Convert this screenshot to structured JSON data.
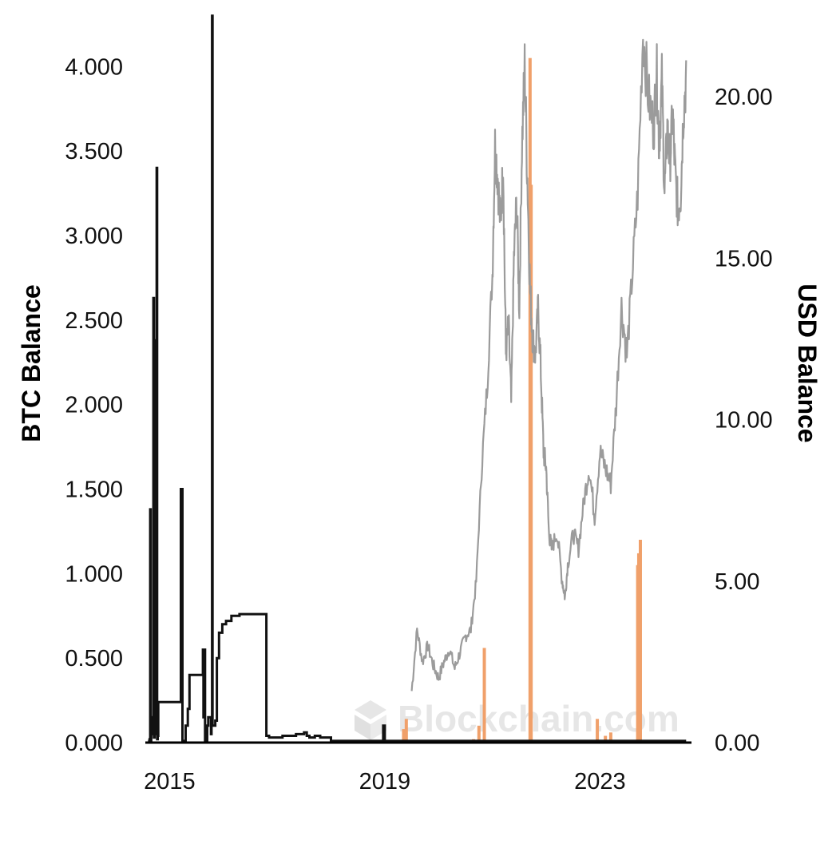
{
  "colors": {
    "btc_line": "#111111",
    "usd_line": "#9b9b9b",
    "volume_bars": "#f0a06a",
    "watermark": "#e6e6e6",
    "background": "#ffffff"
  },
  "watermark": {
    "text": "Blockchain.com",
    "icon": "blockchain-logo-icon"
  },
  "chart_data": {
    "type": "line",
    "grid": false,
    "legend": "none",
    "ylabel_left": "BTC Balance",
    "ylabel_right": "USD Balance",
    "x_ticks": [
      "2015",
      "2019",
      "2023"
    ],
    "x_tick_years": [
      2015,
      2019,
      2023
    ],
    "xlim": [
      2014.55,
      2024.7
    ],
    "y_left_ticks": [
      "0.000",
      "0.500",
      "1.000",
      "1.500",
      "2.000",
      "2.500",
      "3.000",
      "3.500",
      "4.000"
    ],
    "ylim_left": [
      0,
      4.28
    ],
    "y_right_ticks": [
      "0.00",
      "5.00",
      "10.00",
      "15.00",
      "20.00"
    ],
    "ylim_right": [
      0,
      22.4
    ],
    "series": [
      {
        "name": "BTC Balance",
        "axis": "left",
        "x": [
          2014.6,
          2014.63,
          2014.64,
          2014.65,
          2014.66,
          2014.68,
          2014.7,
          2014.71,
          2014.72,
          2014.73,
          2014.74,
          2014.76,
          2014.77,
          2014.78,
          2014.79,
          2014.8,
          2014.81,
          2014.82,
          2014.83,
          2014.84,
          2014.86,
          2014.87,
          2014.88,
          2014.9,
          2014.92,
          2015.05,
          2015.2,
          2015.21,
          2015.22,
          2015.23,
          2015.24,
          2015.25,
          2015.26,
          2015.27,
          2015.28,
          2015.3,
          2015.34,
          2015.37,
          2015.4,
          2015.42,
          2015.43,
          2015.6,
          2015.62,
          2015.63,
          2015.65,
          2015.66,
          2015.68,
          2015.7,
          2015.72,
          2015.75,
          2015.77,
          2015.78,
          2015.79,
          2015.8,
          2015.81,
          2015.82,
          2015.85,
          2015.88,
          2015.92,
          2015.98,
          2016.05,
          2016.15,
          2016.3,
          2016.34,
          2016.35,
          2016.5,
          2016.6,
          2016.8,
          2016.85,
          2017.0,
          2017.1,
          2017.2,
          2017.35,
          2017.5,
          2017.55,
          2017.6,
          2017.7,
          2017.8,
          2018.0,
          2018.5,
          2018.9,
          2018.95,
          2018.96,
          2018.97,
          2019.0,
          2020.0,
          2021.0,
          2022.0,
          2023.0,
          2024.6
        ],
        "y": [
          0.01,
          0.02,
          1.38,
          0.01,
          0.15,
          0.05,
          2.63,
          0.03,
          0.2,
          2.38,
          0.05,
          3.4,
          0.02,
          0.04,
          0.24,
          0.24,
          0.24,
          0.24,
          0.24,
          0.24,
          0.24,
          0.24,
          0.24,
          0.24,
          0.24,
          0.24,
          0.24,
          1.5,
          1.5,
          1.5,
          0.01,
          0.01,
          0.01,
          0.01,
          0.01,
          0.1,
          0.2,
          0.4,
          0.4,
          0.4,
          0.4,
          0.4,
          0.55,
          0.15,
          0.55,
          0.01,
          0.01,
          0.1,
          0.15,
          0.15,
          0.05,
          0.1,
          4.3,
          0.1,
          0.1,
          0.1,
          0.13,
          0.5,
          0.65,
          0.7,
          0.72,
          0.75,
          0.76,
          0.76,
          0.76,
          0.76,
          0.76,
          0.04,
          0.03,
          0.03,
          0.04,
          0.04,
          0.05,
          0.06,
          0.04,
          0.03,
          0.04,
          0.03,
          0.01,
          0.01,
          0.01,
          0.01,
          0.01,
          0.1,
          0.01,
          0.01,
          0.01,
          0.01,
          0.01,
          0.01
        ]
      },
      {
        "name": "USD Balance",
        "axis": "right",
        "x": [
          2019.5,
          2019.6,
          2019.7,
          2019.8,
          2019.9,
          2020.0,
          2020.1,
          2020.2,
          2020.3,
          2020.4,
          2020.5,
          2020.6,
          2020.7,
          2020.8,
          2020.9,
          2021.0,
          2021.05,
          2021.1,
          2021.15,
          2021.2,
          2021.25,
          2021.3,
          2021.35,
          2021.4,
          2021.45,
          2021.5,
          2021.55,
          2021.6,
          2021.65,
          2021.7,
          2021.75,
          2021.8,
          2021.85,
          2021.9,
          2021.95,
          2022.0,
          2022.05,
          2022.1,
          2022.2,
          2022.3,
          2022.35,
          2022.4,
          2022.5,
          2022.6,
          2022.7,
          2022.8,
          2022.9,
          2023.0,
          2023.1,
          2023.2,
          2023.3,
          2023.4,
          2023.5,
          2023.6,
          2023.7,
          2023.8,
          2023.9,
          2024.0,
          2024.05,
          2024.1,
          2024.15,
          2024.2,
          2024.25,
          2024.3,
          2024.35,
          2024.4,
          2024.45,
          2024.5,
          2024.55,
          2024.6
        ],
        "y": [
          1.6,
          3.5,
          2.5,
          3.0,
          2.4,
          2.0,
          2.5,
          2.9,
          2.3,
          2.8,
          3.3,
          3.5,
          5.0,
          8.5,
          11.0,
          14.5,
          18.5,
          17.5,
          16.0,
          18.0,
          12.0,
          13.0,
          10.5,
          15.0,
          16.8,
          13.5,
          18.5,
          21.0,
          17.5,
          14.0,
          12.5,
          12.0,
          13.5,
          11.5,
          9.0,
          8.5,
          6.5,
          6.0,
          6.5,
          5.0,
          4.5,
          5.5,
          6.5,
          6.0,
          7.5,
          8.5,
          7.0,
          9.0,
          8.5,
          8.0,
          10.5,
          13.5,
          12.0,
          14.5,
          17.0,
          22.0,
          20.0,
          19.0,
          21.0,
          18.5,
          20.5,
          17.0,
          19.0,
          18.0,
          19.5,
          17.5,
          16.5,
          17.0,
          19.5,
          20.5
        ]
      },
      {
        "name": "Volume",
        "type": "bar",
        "axis": "left",
        "x": [
          2019.35,
          2019.4,
          2020.65,
          2020.75,
          2020.85,
          2021.7,
          2021.72,
          2022.95,
          2023.1,
          2023.2,
          2023.7,
          2023.72,
          2023.75
        ],
        "y": [
          0.08,
          0.14,
          0.02,
          0.1,
          0.56,
          4.05,
          3.3,
          0.14,
          0.04,
          0.06,
          1.05,
          1.12,
          1.2
        ]
      }
    ]
  }
}
